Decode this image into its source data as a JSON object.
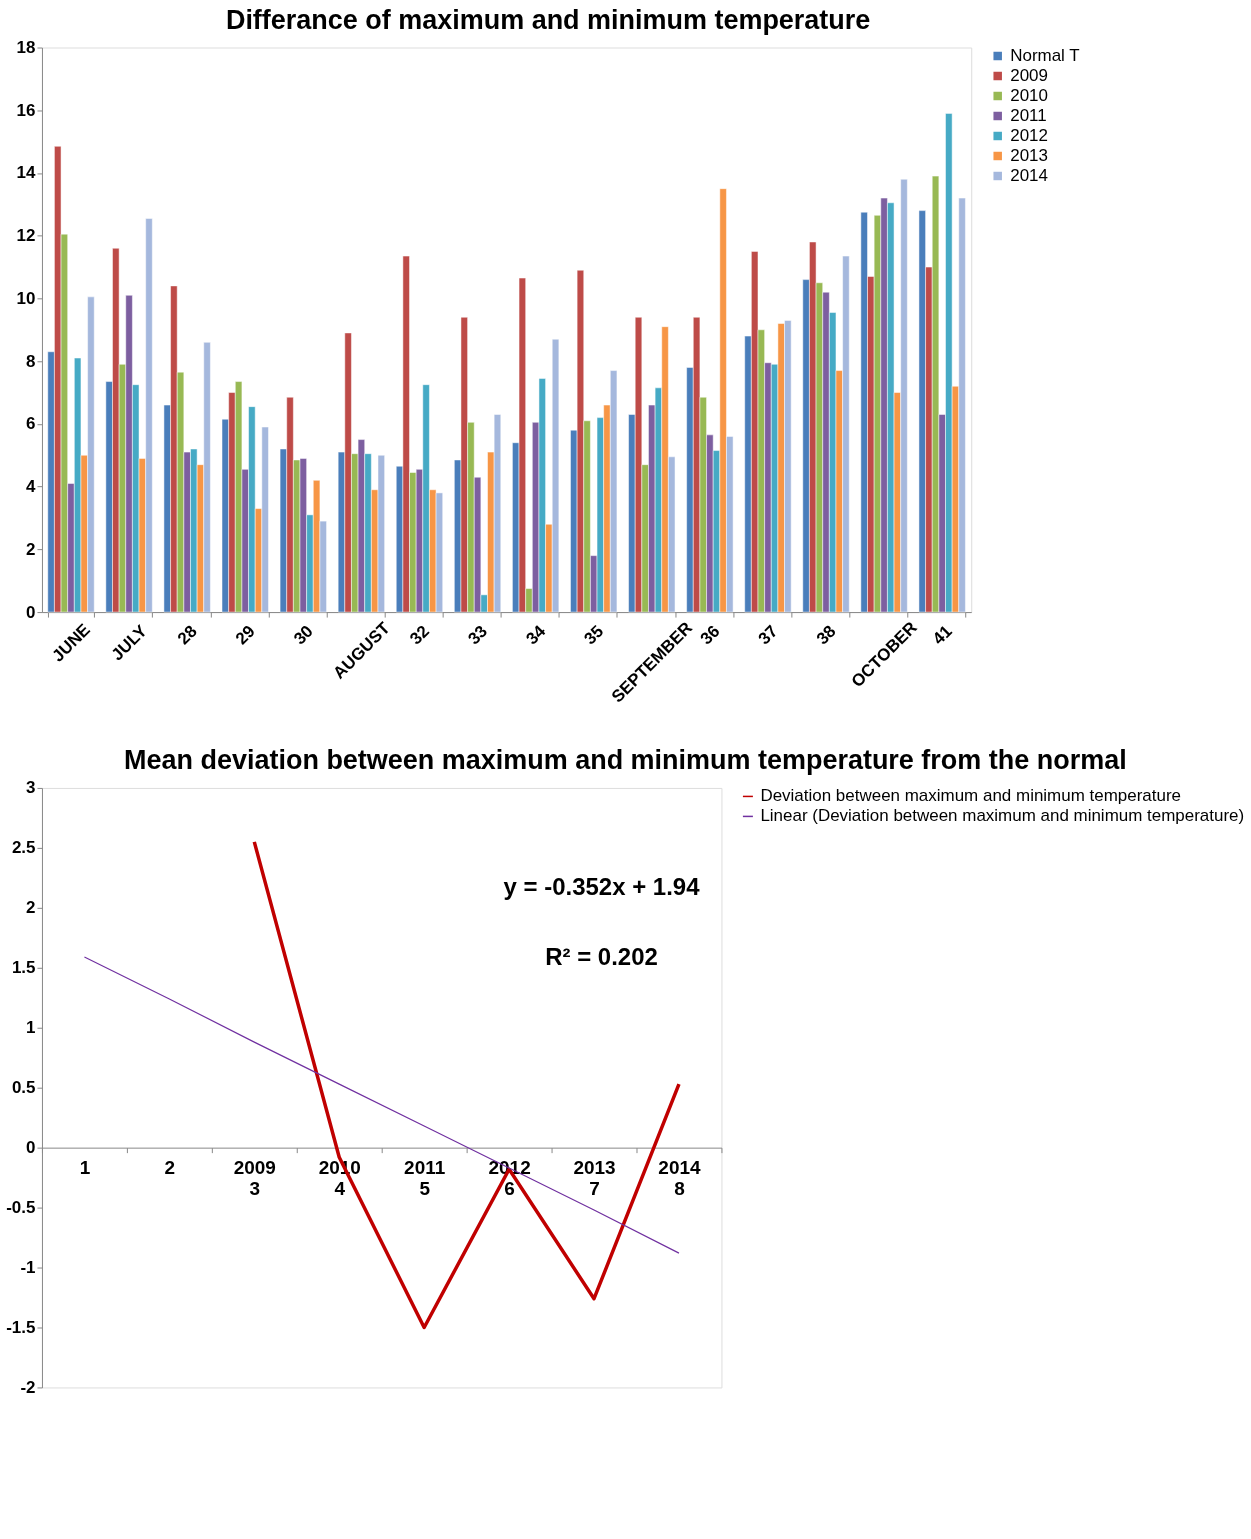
{
  "chart_data": [
    {
      "type": "bar",
      "title": "Differance of maximum and minimum temperature",
      "categories": [
        "JUNE",
        "JULY",
        "28",
        "29",
        "30",
        "AUGUST",
        "32",
        "33",
        "34",
        "35",
        "SEPTEMBER",
        "36",
        "37",
        "38",
        "OCTOBER",
        "41"
      ],
      "series": [
        {
          "name": "Normal T",
          "color": "#4a7ebb",
          "values": [
            8.3,
            7.35,
            6.6,
            6.15,
            5.2,
            5.1,
            4.65,
            4.85,
            5.4,
            5.8,
            6.3,
            7.8,
            8.8,
            10.6,
            12.75,
            12.8
          ]
        },
        {
          "name": "2009",
          "color": "#be4b48",
          "values": [
            14.85,
            11.6,
            10.4,
            7.0,
            6.85,
            8.9,
            11.35,
            9.4,
            10.65,
            10.9,
            9.4,
            9.4,
            11.5,
            11.8,
            10.7,
            11.0
          ]
        },
        {
          "name": "2010",
          "color": "#98b954",
          "values": [
            12.05,
            7.9,
            7.65,
            7.35,
            4.85,
            5.05,
            4.45,
            6.05,
            0.75,
            6.1,
            4.7,
            6.85,
            9.0,
            10.5,
            12.65,
            13.9
          ]
        },
        {
          "name": "2011",
          "color": "#7d5fa0",
          "values": [
            4.1,
            10.1,
            5.1,
            4.55,
            4.9,
            5.5,
            4.55,
            4.3,
            6.05,
            1.8,
            6.6,
            5.65,
            7.95,
            10.2,
            13.2,
            6.3
          ]
        },
        {
          "name": "2012",
          "color": "#46aac5",
          "values": [
            8.1,
            7.25,
            5.2,
            6.55,
            3.1,
            5.05,
            7.25,
            0.55,
            7.45,
            6.2,
            7.15,
            5.15,
            7.9,
            9.55,
            13.05,
            15.9
          ]
        },
        {
          "name": "2013",
          "color": "#f79646",
          "values": [
            5.0,
            4.9,
            4.7,
            3.3,
            4.2,
            3.9,
            3.9,
            5.1,
            2.8,
            6.6,
            9.1,
            13.5,
            9.2,
            7.7,
            7.0,
            7.2
          ]
        },
        {
          "name": "2014",
          "color": "#a5b8dd",
          "values": [
            10.05,
            12.55,
            8.6,
            5.9,
            2.9,
            5.0,
            3.8,
            6.3,
            8.7,
            7.7,
            4.95,
            5.6,
            9.3,
            11.35,
            13.8,
            13.2
          ]
        }
      ],
      "ylim": [
        0,
        18
      ],
      "yticks": [
        0,
        2,
        4,
        6,
        8,
        10,
        12,
        14,
        16,
        18
      ],
      "grid": false,
      "legend": "right"
    },
    {
      "type": "line",
      "title": "Mean deviation between maximum and minimum temperature from the normal",
      "categories": [
        "1",
        "2",
        "2009\n3",
        "2010\n4",
        "2011\n5",
        "2012\n6",
        "2013\n7",
        "2014\n8"
      ],
      "series": [
        {
          "name": "Deviation between maximum and minimum temperature",
          "color": "#c00000",
          "type": "line",
          "values": [
            null,
            null,
            2.55,
            -0.08,
            -1.5,
            -0.18,
            -1.26,
            0.53
          ]
        },
        {
          "name": "Linear (Deviation between maximum and minimum temperature)",
          "color": "#7030a0",
          "type": "line",
          "values": [
            1.59,
            1.24,
            0.88,
            0.53,
            0.18,
            -0.17,
            -0.52,
            -0.88
          ]
        }
      ],
      "annotations": [
        "y = -0.352x + 1.94",
        "R² = 0.202"
      ],
      "ylim": [
        -2,
        3
      ],
      "yticks": [
        -2,
        -1.5,
        -1,
        -0.5,
        0,
        0.5,
        1,
        1.5,
        2,
        2.5,
        3
      ],
      "grid": false,
      "legend": "right",
      "marker": "none",
      "line_style": "solid"
    }
  ]
}
